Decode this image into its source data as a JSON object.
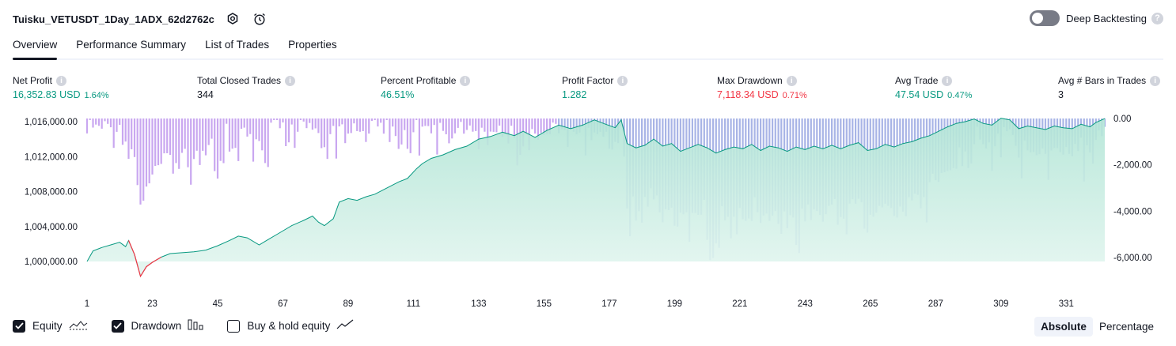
{
  "header": {
    "title": "Tuisku_VETUSDT_1Day_1ADX_62d2762c",
    "deep_backtesting_label": "Deep Backtesting",
    "deep_backtesting_enabled": false
  },
  "tabs": [
    {
      "label": "Overview",
      "active": true
    },
    {
      "label": "Performance Summary",
      "active": false
    },
    {
      "label": "List of Trades",
      "active": false
    },
    {
      "label": "Properties",
      "active": false
    }
  ],
  "metrics": {
    "net_profit": {
      "label": "Net Profit",
      "value": "16,352.83 USD",
      "pct": "1.64%"
    },
    "total_closed_trades": {
      "label": "Total Closed Trades",
      "value": "344"
    },
    "percent_profitable": {
      "label": "Percent Profitable",
      "value": "46.51%"
    },
    "profit_factor": {
      "label": "Profit Factor",
      "value": "1.282"
    },
    "max_drawdown": {
      "label": "Max Drawdown",
      "value": "7,118.34 USD",
      "pct": "0.71%"
    },
    "avg_trade": {
      "label": "Avg Trade",
      "value": "47.54 USD",
      "pct": "0.47%"
    },
    "avg_bars": {
      "label": "Avg # Bars in Trades",
      "value": "3"
    }
  },
  "legend": {
    "equity": {
      "label": "Equity",
      "checked": true
    },
    "drawdown": {
      "label": "Drawdown",
      "checked": true
    },
    "buy_hold": {
      "label": "Buy & hold equity",
      "checked": false
    }
  },
  "scale_toggle": {
    "absolute": "Absolute",
    "percentage": "Percentage",
    "selected": "Absolute"
  },
  "colors": {
    "profit_green": "#089981",
    "loss_red": "#f23645",
    "drawdown_purple": "#c9a7f0",
    "drawdown_blue": "#a8b4e6",
    "equity_fill": "#cdeee4"
  },
  "chart_data": {
    "type": "area",
    "series": [
      {
        "name": "Equity",
        "axis": "left"
      },
      {
        "name": "Drawdown",
        "axis": "right"
      }
    ],
    "left_axis": {
      "ticks": [
        "1,000,000.00",
        "1,004,000.00",
        "1,008,000.00",
        "1,012,000.00",
        "1,016,000.00"
      ],
      "range": [
        998000,
        1016500
      ]
    },
    "right_axis": {
      "ticks": [
        "0.00",
        "-2,000.00",
        "-4,000.00",
        "-6,000.00"
      ],
      "range": [
        -7118.34,
        0
      ]
    },
    "x_ticks": [
      "1",
      "23",
      "45",
      "67",
      "89",
      "111",
      "133",
      "155",
      "177",
      "199",
      "221",
      "243",
      "265",
      "287",
      "309",
      "331"
    ],
    "x_range": [
      1,
      344
    ],
    "equity_points": [
      [
        1,
        1000000
      ],
      [
        3,
        1001200
      ],
      [
        6,
        1001600
      ],
      [
        9,
        1001900
      ],
      [
        12,
        1002200
      ],
      [
        14,
        1001700
      ],
      [
        15,
        1002400
      ],
      [
        17,
        1000800
      ],
      [
        19,
        998300
      ],
      [
        21,
        999400
      ],
      [
        23,
        999900
      ],
      [
        26,
        1000500
      ],
      [
        29,
        1000900
      ],
      [
        33,
        1001000
      ],
      [
        37,
        1001100
      ],
      [
        41,
        1001300
      ],
      [
        45,
        1001800
      ],
      [
        49,
        1002400
      ],
      [
        52,
        1002900
      ],
      [
        55,
        1002700
      ],
      [
        59,
        1001900
      ],
      [
        62,
        1002500
      ],
      [
        66,
        1003300
      ],
      [
        70,
        1004100
      ],
      [
        74,
        1004700
      ],
      [
        77,
        1005200
      ],
      [
        79,
        1004500
      ],
      [
        81,
        1004100
      ],
      [
        84,
        1004900
      ],
      [
        86,
        1006800
      ],
      [
        89,
        1007200
      ],
      [
        92,
        1007000
      ],
      [
        95,
        1007400
      ],
      [
        98,
        1007700
      ],
      [
        102,
        1008400
      ],
      [
        106,
        1009100
      ],
      [
        109,
        1009500
      ],
      [
        112,
        1010600
      ],
      [
        114,
        1011200
      ],
      [
        117,
        1011800
      ],
      [
        121,
        1012200
      ],
      [
        125,
        1012800
      ],
      [
        129,
        1013200
      ],
      [
        133,
        1014000
      ],
      [
        137,
        1014300
      ],
      [
        141,
        1014800
      ],
      [
        145,
        1014400
      ],
      [
        148,
        1014900
      ],
      [
        152,
        1014200
      ],
      [
        156,
        1015000
      ],
      [
        160,
        1015600
      ],
      [
        164,
        1015200
      ],
      [
        168,
        1015600
      ],
      [
        172,
        1016200
      ],
      [
        175,
        1015800
      ],
      [
        179,
        1015300
      ],
      [
        181,
        1016200
      ],
      [
        183,
        1013500
      ],
      [
        186,
        1013000
      ],
      [
        189,
        1013300
      ],
      [
        192,
        1014000
      ],
      [
        195,
        1013200
      ],
      [
        198,
        1013500
      ],
      [
        201,
        1012600
      ],
      [
        204,
        1013000
      ],
      [
        207,
        1013400
      ],
      [
        210,
        1013000
      ],
      [
        213,
        1012400
      ],
      [
        216,
        1012800
      ],
      [
        219,
        1013100
      ],
      [
        222,
        1012900
      ],
      [
        225,
        1013400
      ],
      [
        228,
        1012700
      ],
      [
        231,
        1013200
      ],
      [
        234,
        1013000
      ],
      [
        237,
        1012600
      ],
      [
        240,
        1013100
      ],
      [
        243,
        1012800
      ],
      [
        246,
        1013200
      ],
      [
        249,
        1012900
      ],
      [
        252,
        1013300
      ],
      [
        255,
        1012900
      ],
      [
        258,
        1013300
      ],
      [
        261,
        1013600
      ],
      [
        264,
        1012700
      ],
      [
        267,
        1012900
      ],
      [
        270,
        1013400
      ],
      [
        273,
        1013100
      ],
      [
        276,
        1013500
      ],
      [
        279,
        1013700
      ],
      [
        282,
        1014100
      ],
      [
        285,
        1014400
      ],
      [
        288,
        1014900
      ],
      [
        291,
        1015400
      ],
      [
        294,
        1015800
      ],
      [
        297,
        1016000
      ],
      [
        300,
        1016300
      ],
      [
        303,
        1015800
      ],
      [
        306,
        1015600
      ],
      [
        309,
        1016400
      ],
      [
        312,
        1016200
      ],
      [
        315,
        1015200
      ],
      [
        318,
        1015500
      ],
      [
        321,
        1015300
      ],
      [
        324,
        1015100
      ],
      [
        327,
        1015500
      ],
      [
        330,
        1015300
      ],
      [
        333,
        1015200
      ],
      [
        336,
        1015700
      ],
      [
        339,
        1015400
      ],
      [
        341,
        1015900
      ],
      [
        344,
        1016350
      ]
    ]
  }
}
